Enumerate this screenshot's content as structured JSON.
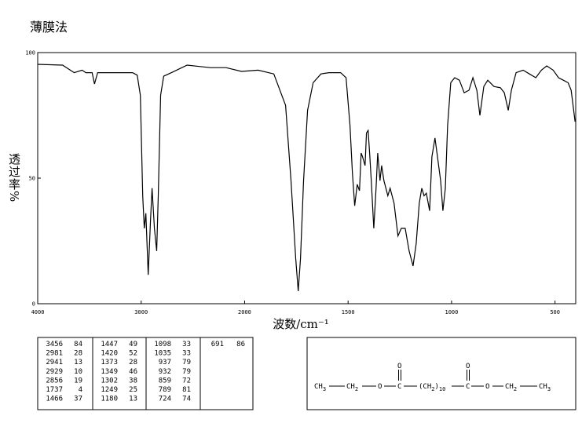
{
  "chart_data": {
    "type": "line",
    "title": "薄膜法",
    "x_label": "波数/cm⁻¹",
    "y_label": "透过率%",
    "xlim": [
      4000,
      400
    ],
    "x_break": 2000,
    "x_break_factor": 2,
    "xticks": [
      4000,
      3000,
      2000,
      1500,
      1000,
      500
    ],
    "ylim": [
      0,
      100
    ],
    "yticks": [
      0,
      50,
      100
    ],
    "series": [
      {
        "color": "#000000",
        "x": [
          4000,
          3759,
          3647,
          3571,
          3534,
          3474,
          3451,
          3421,
          3308,
          3083,
          3038,
          3008,
          2985,
          2970,
          2955,
          2932,
          2910,
          2895,
          2872,
          2850,
          2835,
          2812,
          2782,
          2707,
          2556,
          2331,
          2180,
          2030,
          1935,
          1859,
          1802,
          1776,
          1753,
          1741,
          1730,
          1715,
          1696,
          1669,
          1631,
          1593,
          1536,
          1510,
          1491,
          1479,
          1468,
          1456,
          1445,
          1437,
          1430,
          1418,
          1411,
          1403,
          1395,
          1388,
          1376,
          1365,
          1357,
          1346,
          1338,
          1327,
          1308,
          1297,
          1278,
          1259,
          1243,
          1224,
          1205,
          1186,
          1171,
          1156,
          1144,
          1133,
          1122,
          1106,
          1095,
          1080,
          1068,
          1053,
          1042,
          1030,
          1019,
          1004,
          985,
          962,
          939,
          916,
          897,
          878,
          863,
          844,
          825,
          795,
          764,
          745,
          726,
          711,
          688,
          654,
          624,
          593,
          566,
          540,
          509,
          483,
          460,
          437,
          422,
          403
        ],
        "values": [
          95.3,
          95,
          92,
          93,
          92,
          92,
          87.5,
          92,
          92,
          92,
          91,
          83,
          43,
          30,
          36,
          11.5,
          33,
          46,
          30,
          21,
          43,
          83,
          90.6,
          92,
          95,
          94,
          94,
          92.5,
          93,
          91.5,
          79,
          49,
          18,
          5,
          18,
          49,
          77,
          88,
          91.5,
          92,
          92,
          90,
          71,
          52,
          39,
          47.5,
          45,
          60,
          58.5,
          55,
          68,
          69,
          58.5,
          49,
          30,
          46,
          60,
          49,
          55,
          49,
          43,
          46,
          40,
          27,
          30,
          30,
          21,
          15,
          24,
          40,
          46,
          43,
          44,
          37,
          58.5,
          66,
          58.5,
          49,
          37,
          46,
          71,
          88,
          90,
          89,
          84,
          85,
          90,
          85,
          75,
          86.5,
          89,
          86.5,
          86,
          84,
          77,
          85,
          92,
          93,
          91.5,
          90,
          93,
          94.7,
          93,
          90,
          89,
          88,
          85,
          72.5
        ]
      }
    ],
    "peak_table": [
      [
        3456,
        84
      ],
      [
        2981,
        28
      ],
      [
        2941,
        13
      ],
      [
        2929,
        10
      ],
      [
        2856,
        19
      ],
      [
        1737,
        4
      ],
      [
        1466,
        37
      ],
      [
        1447,
        49
      ],
      [
        1420,
        52
      ],
      [
        1373,
        28
      ],
      [
        1349,
        46
      ],
      [
        1302,
        38
      ],
      [
        1249,
        25
      ],
      [
        1180,
        13
      ],
      [
        1098,
        33
      ],
      [
        1035,
        33
      ],
      [
        937,
        79
      ],
      [
        932,
        79
      ],
      [
        859,
        72
      ],
      [
        789,
        81
      ],
      [
        724,
        74
      ],
      [
        691,
        86
      ]
    ],
    "structure": [
      {
        "text": "CH",
        "sub": "3"
      },
      {
        "text": "CH",
        "sub": "2"
      },
      {
        "text": "O"
      },
      {
        "text": "C",
        "top": "O"
      },
      {
        "text": "(CH",
        "mid": "2",
        "end": ")",
        "sub": "10"
      },
      {
        "text": "C",
        "top": "O"
      },
      {
        "text": "O"
      },
      {
        "text": "CH",
        "sub": "2"
      },
      {
        "text": "CH",
        "sub": "3"
      }
    ]
  }
}
